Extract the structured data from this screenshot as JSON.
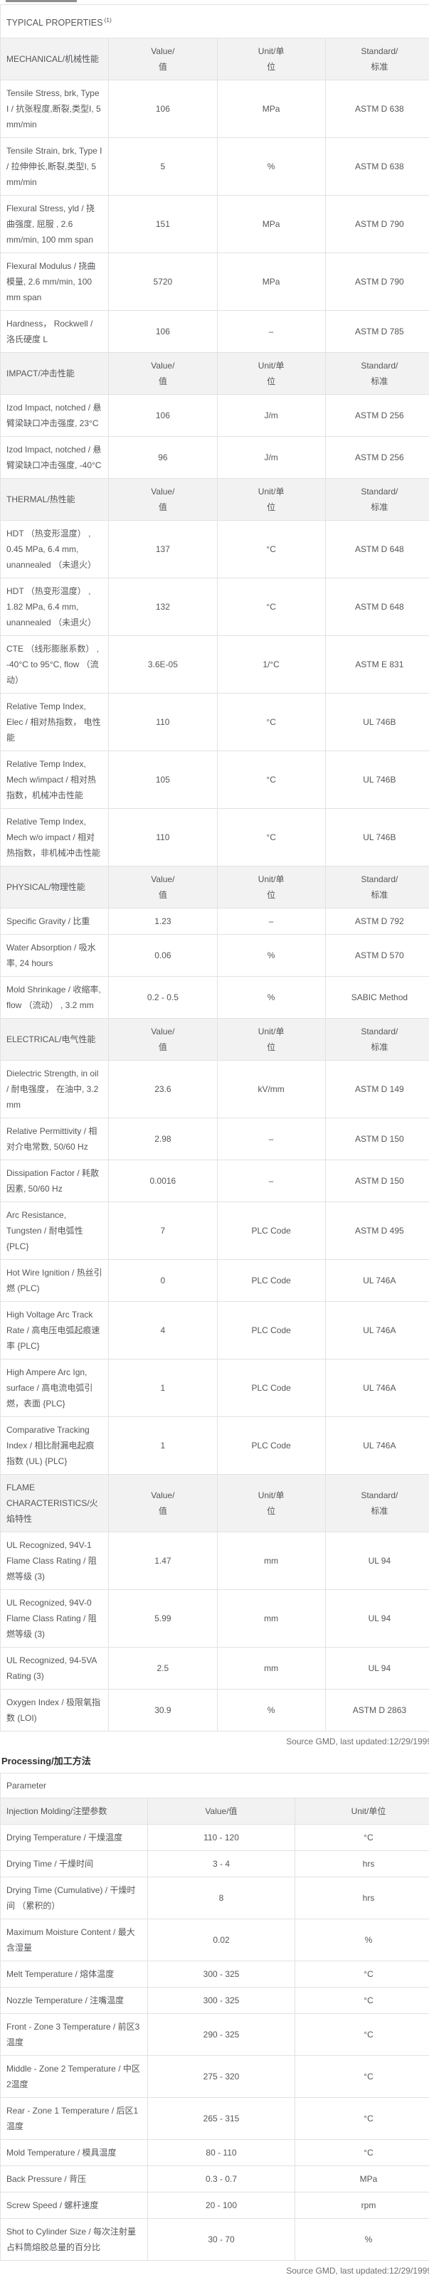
{
  "colors": {
    "outer_border": "#434446",
    "inner_border": "#e2e2e2",
    "section_header_bg": "#f2f2f2",
    "body_text": "#54565b",
    "footer_text": "#6d6f72"
  },
  "typical_properties": {
    "title": "TYPICAL PROPERTIES",
    "title_superscript": "(1)",
    "footer": "Source GMD, last updated:12/29/1999",
    "col_headers": {
      "value": [
        "Value/",
        "值"
      ],
      "unit": [
        "Unit/单",
        "位"
      ],
      "standard": [
        "Standard/",
        "标准"
      ]
    },
    "sections": [
      {
        "name": "MECHANICAL/机械性能",
        "rows": [
          [
            "Tensile Stress, brk, Type I / 抗张程度,断裂,类型I, 5 mm/min",
            "106",
            "MPa",
            "ASTM D 638"
          ],
          [
            "Tensile Strain, brk, Type I / 拉伸伸长,断裂,类型I, 5 mm/min",
            "5",
            "%",
            "ASTM D 638"
          ],
          [
            "Flexural Stress, yld / 挠曲强度, 屈服 , 2.6 mm/min, 100 mm span",
            "151",
            "MPa",
            "ASTM D 790"
          ],
          [
            "Flexural Modulus / 挠曲模量, 2.6 mm/min, 100 mm span",
            "5720",
            "MPa",
            "ASTM D 790"
          ],
          [
            "Hardness， Rockwell / 洛氏硬度 L",
            "106",
            "–",
            "ASTM D 785"
          ]
        ]
      },
      {
        "name": "IMPACT/冲击性能",
        "rows": [
          [
            "Izod Impact, notched / 悬臂梁缺口冲击强度, 23°C",
            "106",
            "J/m",
            "ASTM D 256"
          ],
          [
            "Izod Impact, notched / 悬臂梁缺口冲击强度, -40°C",
            "96",
            "J/m",
            "ASTM D 256"
          ]
        ]
      },
      {
        "name": "THERMAL/热性能",
        "rows": [
          [
            "HDT （热变形温度） , 0.45 MPa, 6.4 mm, unannealed （未退火）",
            "137",
            "°C",
            "ASTM D 648"
          ],
          [
            "HDT （热变形温度） , 1.82 MPa, 6.4 mm, unannealed （未退火）",
            "132",
            "°C",
            "ASTM D 648"
          ],
          [
            "CTE （线形膨胀系数） , -40°C to 95°C, flow （流动）",
            "3.6E-05",
            "1/°C",
            "ASTM E 831"
          ],
          [
            "Relative Temp Index, Elec / 相对热指数， 电性能",
            "110",
            "°C",
            "UL 746B"
          ],
          [
            "Relative Temp Index, Mech w/impact / 相对热指数，机械冲击性能",
            "105",
            "°C",
            "UL 746B"
          ],
          [
            "Relative Temp Index, Mech w/o impact / 相对热指数，非机械冲击性能",
            "110",
            "°C",
            "UL 746B"
          ]
        ]
      },
      {
        "name": "PHYSICAL/物理性能",
        "rows": [
          [
            "Specific Gravity / 比重",
            "1.23",
            "–",
            "ASTM D 792"
          ],
          [
            "Water Absorption / 吸水率, 24 hours",
            "0.06",
            "%",
            "ASTM D 570"
          ],
          [
            "Mold Shrinkage / 收缩率, flow （流动） , 3.2 mm",
            "0.2 - 0.5",
            "%",
            "SABIC Method"
          ]
        ]
      },
      {
        "name": "ELECTRICAL/电气性能",
        "rows": [
          [
            "Dielectric Strength, in oil / 耐电强度， 在油中, 3.2 mm",
            "23.6",
            "kV/mm",
            "ASTM D 149"
          ],
          [
            "Relative Permittivity / 相对介电常数, 50/60 Hz",
            "2.98",
            "–",
            "ASTM D 150"
          ],
          [
            "Dissipation Factor / 耗散因素, 50/60 Hz",
            "0.0016",
            "–",
            "ASTM D 150"
          ],
          [
            "Arc Resistance, Tungsten / 耐电弧性 {PLC}",
            "7",
            "PLC Code",
            "ASTM D 495"
          ],
          [
            "Hot Wire Ignition / 热丝引燃 (PLC)",
            "0",
            "PLC Code",
            "UL 746A"
          ],
          [
            "High Voltage Arc Track Rate / 高电压电弧起痕速率 {PLC}",
            "4",
            "PLC Code",
            "UL 746A"
          ],
          [
            "High Ampere Arc Ign, surface / 高电流电弧引燃，表面 {PLC}",
            "1",
            "PLC Code",
            "UL 746A"
          ],
          [
            "Comparative Tracking Index / 相比耐漏电起痕指数 (UL) {PLC}",
            "1",
            "PLC Code",
            "UL 746A"
          ]
        ]
      },
      {
        "name": "FLAME CHARACTERISTICS/火焰特性",
        "rows": [
          [
            "UL Recognized, 94V-1 Flame Class Rating / 阻燃等级 (3)",
            "1.47",
            "mm",
            "UL 94"
          ],
          [
            "UL Recognized, 94V-0 Flame Class Rating / 阻燃等级 (3)",
            "5.99",
            "mm",
            "UL 94"
          ],
          [
            "UL Recognized, 94-5VA Rating (3)",
            "2.5",
            "mm",
            "UL 94"
          ],
          [
            "Oxygen Index / 极限氧指数 (LOI)",
            "30.9",
            "%",
            "ASTM D 2863"
          ]
        ]
      }
    ]
  },
  "processing": {
    "title": "Processing/加工方法",
    "param_header": "Parameter",
    "section_header": "Injection Molding/注塑参数",
    "col_headers": {
      "value": "Value/值",
      "unit": "Unit/单位"
    },
    "footer": "Source GMD, last updated:12/29/1999",
    "rows": [
      [
        "Drying Temperature / 干燥温度",
        "110 - 120",
        "°C"
      ],
      [
        "Drying Time / 干燥时间",
        "3 - 4",
        "hrs"
      ],
      [
        "Drying Time (Cumulative) / 干燥时间 （累积的）",
        "8",
        "hrs"
      ],
      [
        "Maximum Moisture Content / 最大含湿量",
        "0.02",
        "%"
      ],
      [
        "Melt Temperature / 熔体温度",
        "300 - 325",
        "°C"
      ],
      [
        "Nozzle Temperature / 注嘴温度",
        "300 - 325",
        "°C"
      ],
      [
        "Front - Zone 3 Temperature / 前区3温度",
        "290 - 325",
        "°C"
      ],
      [
        "Middle - Zone 2 Temperature / 中区2温度",
        "275 - 320",
        "°C"
      ],
      [
        "Rear - Zone 1 Temperature / 后区1温度",
        "265 - 315",
        "°C"
      ],
      [
        "Mold Temperature / 模具温度",
        "80 - 110",
        "°C"
      ],
      [
        "Back Pressure / 背压",
        "0.3 - 0.7",
        "MPa"
      ],
      [
        "Screw Speed / 螺杆速度",
        "20 - 100",
        "rpm"
      ],
      [
        "Shot to Cylinder Size / 每次注射量占料筒熔胶总量的百分比",
        "30 - 70",
        "%"
      ]
    ]
  }
}
